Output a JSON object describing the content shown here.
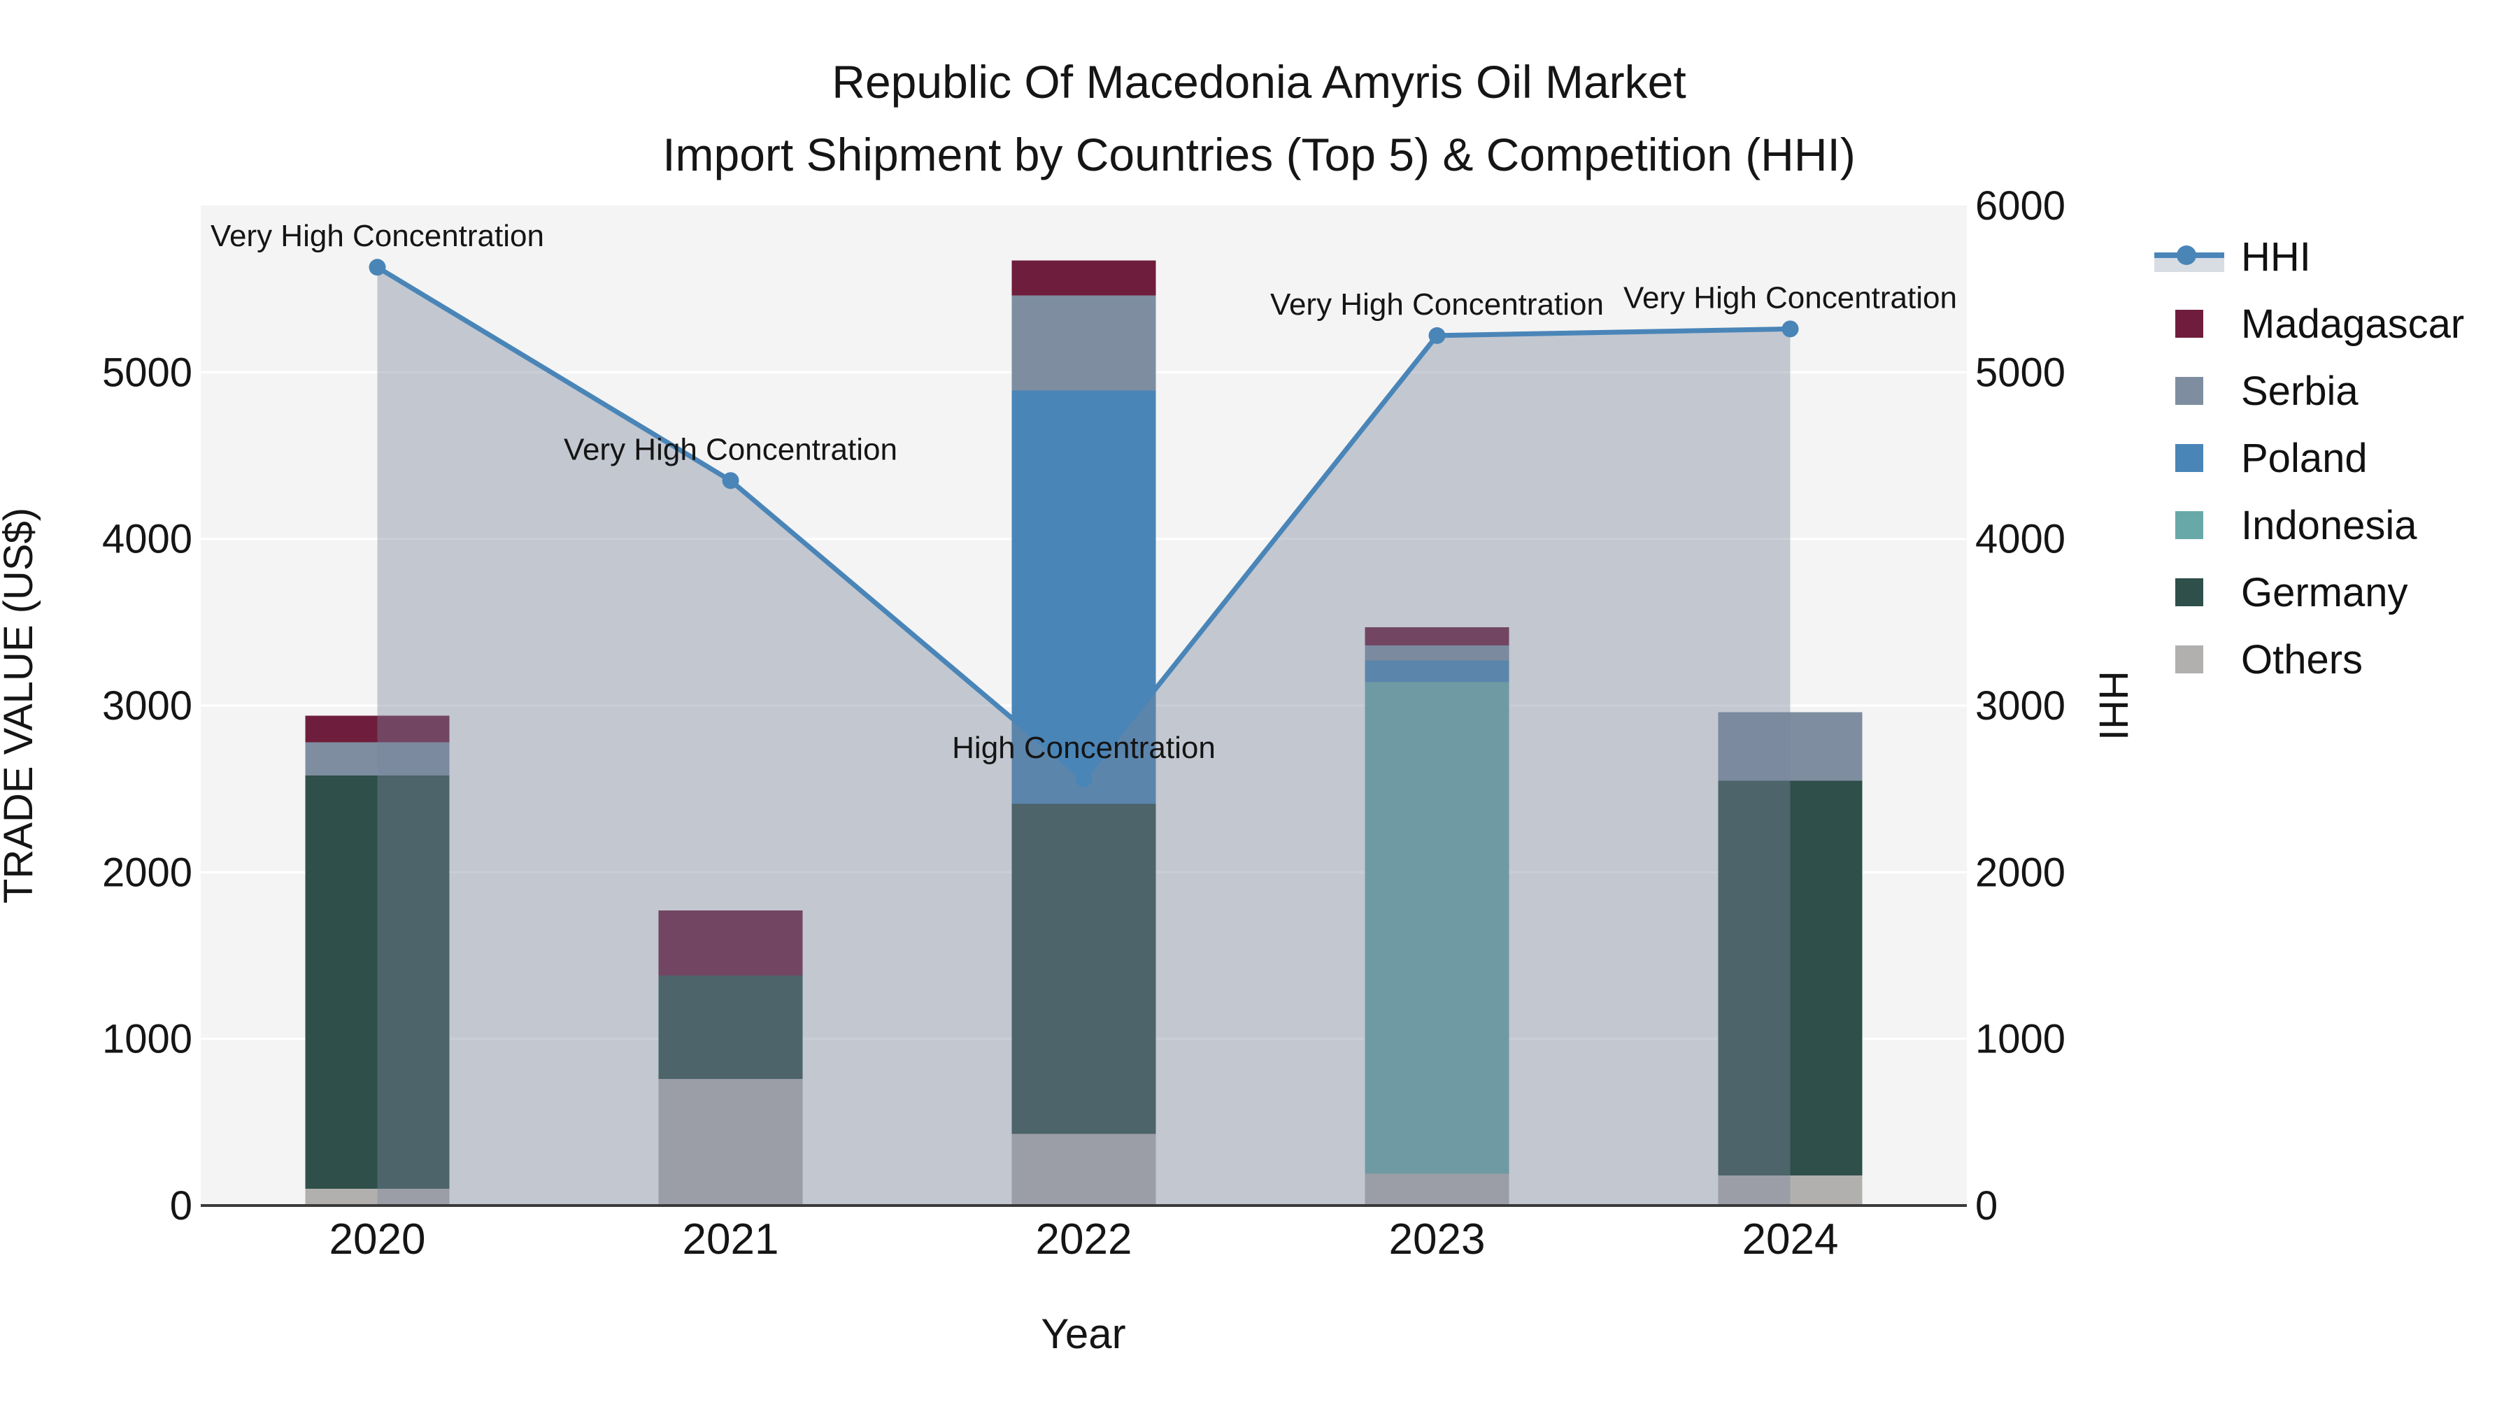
{
  "chart_data": {
    "type": "bar+line",
    "title_line1": "Republic Of Macedonia Amyris Oil Market",
    "title_line2": "Import Shipment by Countries (Top 5) & Competition (HHI)",
    "xlabel": "Year",
    "ylabel_left": "TRADE VALUE (US$)",
    "ylabel_right": "HHI",
    "categories": [
      "2020",
      "2021",
      "2022",
      "2023",
      "2024"
    ],
    "bar_series": [
      {
        "name": "Others",
        "color": "#b2b0ae",
        "values": [
          100,
          760,
          430,
          190,
          180
        ]
      },
      {
        "name": "Germany",
        "color": "#2f4f4a",
        "values": [
          2480,
          620,
          1980,
          0,
          2370
        ]
      },
      {
        "name": "Indonesia",
        "color": "#69a8a8",
        "values": [
          0,
          0,
          0,
          2950,
          0
        ]
      },
      {
        "name": "Poland",
        "color": "#4a85b8",
        "values": [
          0,
          0,
          2480,
          130,
          0
        ]
      },
      {
        "name": "Serbia",
        "color": "#7e8ea0",
        "values": [
          200,
          0,
          570,
          90,
          410
        ]
      },
      {
        "name": "Madagascar",
        "color": "#6f1d3c",
        "values": [
          160,
          390,
          210,
          110,
          0
        ]
      }
    ],
    "bar_totals": [
      2940,
      1770,
      5670,
      3470,
      2960
    ],
    "line_series": {
      "name": "HHI",
      "color": "#4a85b8",
      "area_fill_color": "rgba(120,133,156,0.40)",
      "values": [
        5630,
        4350,
        2560,
        5220,
        5260
      ]
    },
    "annotations": [
      {
        "category": "2020",
        "text": "Very High Concentration"
      },
      {
        "category": "2021",
        "text": "Very High Concentration"
      },
      {
        "category": "2022",
        "text": "High Concentration"
      },
      {
        "category": "2023",
        "text": "Very High Concentration"
      },
      {
        "category": "2024",
        "text": "Very High Concentration"
      }
    ],
    "axis_left": {
      "ticks": [
        0,
        1000,
        2000,
        3000,
        4000,
        5000
      ],
      "range": [
        0,
        6000
      ]
    },
    "axis_right": {
      "ticks": [
        0,
        1000,
        2000,
        3000,
        4000,
        5000,
        6000
      ],
      "range": [
        0,
        6000
      ]
    },
    "legend_items": [
      "HHI",
      "Madagascar",
      "Serbia",
      "Poland",
      "Indonesia",
      "Germany",
      "Others"
    ],
    "grid": true,
    "legend_position": "right",
    "plot_bg_color": "#f4f4f4",
    "grid_color": "#ffffff",
    "axis_line_color": "#3a3a3a"
  }
}
